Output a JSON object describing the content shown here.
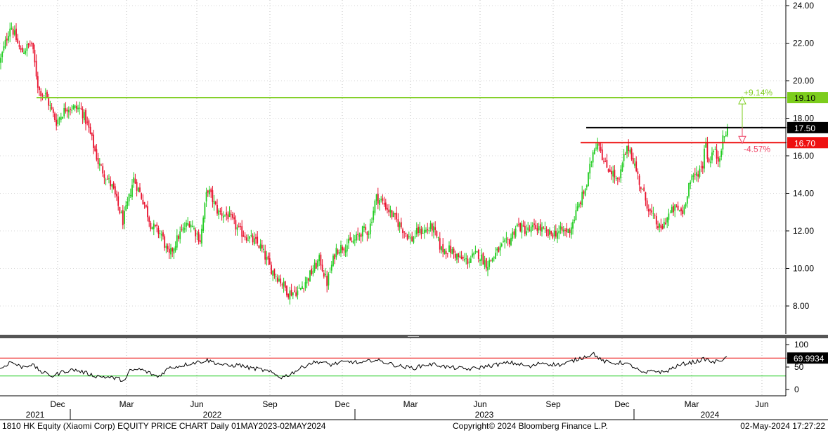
{
  "footer": {
    "left": "1810 HK Equity (Xiaomi Corp) EQUITY PRICE CHART  Daily 01MAY2023-02MAY2024",
    "center": "Copyright© 2024 Bloomberg Finance L.P.",
    "right": "02-May-2024 17:27:22"
  },
  "chart_data": [
    {
      "type": "candlestick",
      "y_ticks": [
        "24.00",
        "22.00",
        "20.00",
        "18.00",
        "16.00",
        "14.00",
        "12.00",
        "10.00",
        "8.00"
      ],
      "ylim": [
        6.3,
        24.2
      ],
      "x_month_labels": [
        "Dec",
        "Mar",
        "Jun",
        "Sep",
        "Dec",
        "Mar",
        "Jun",
        "Sep",
        "Dec",
        "Mar",
        "Jun"
      ],
      "x_year_labels": [
        "2021",
        "2022",
        "2023",
        "2024"
      ],
      "series_colors": {
        "up": "#22cc22",
        "down": "#e8112d"
      },
      "anchors": [
        [
          0,
          21.0
        ],
        [
          15,
          23.0
        ],
        [
          30,
          21.5
        ],
        [
          45,
          22.0
        ],
        [
          55,
          19.5
        ],
        [
          65,
          19.2
        ],
        [
          80,
          17.8
        ],
        [
          95,
          18.6
        ],
        [
          115,
          18.5
        ],
        [
          125,
          17.6
        ],
        [
          140,
          15.6
        ],
        [
          160,
          14.3
        ],
        [
          175,
          12.5
        ],
        [
          182,
          13.5
        ],
        [
          190,
          14.8
        ],
        [
          205,
          13.5
        ],
        [
          215,
          12.3
        ],
        [
          230,
          11.8
        ],
        [
          240,
          10.6
        ],
        [
          255,
          11.8
        ],
        [
          270,
          12.5
        ],
        [
          285,
          11.5
        ],
        [
          295,
          14.3
        ],
        [
          310,
          13.0
        ],
        [
          325,
          12.8
        ],
        [
          340,
          12.0
        ],
        [
          355,
          11.6
        ],
        [
          370,
          11.2
        ],
        [
          385,
          10.0
        ],
        [
          400,
          9.3
        ],
        [
          410,
          8.7
        ],
        [
          425,
          8.8
        ],
        [
          440,
          9.6
        ],
        [
          455,
          10.5
        ],
        [
          465,
          9.2
        ],
        [
          478,
          11.0
        ],
        [
          490,
          11.2
        ],
        [
          505,
          11.5
        ],
        [
          515,
          12.0
        ],
        [
          525,
          12.0
        ],
        [
          535,
          13.8
        ],
        [
          545,
          13.5
        ],
        [
          555,
          13.0
        ],
        [
          565,
          12.5
        ],
        [
          575,
          12.0
        ],
        [
          585,
          11.5
        ],
        [
          595,
          12.0
        ],
        [
          605,
          12.0
        ],
        [
          615,
          12.2
        ],
        [
          628,
          11.0
        ],
        [
          640,
          11.0
        ],
        [
          655,
          10.5
        ],
        [
          665,
          10.4
        ],
        [
          680,
          10.8
        ],
        [
          693,
          10.2
        ],
        [
          710,
          11.0
        ],
        [
          725,
          11.5
        ],
        [
          735,
          12.3
        ],
        [
          750,
          12.0
        ],
        [
          765,
          12.2
        ],
        [
          780,
          11.8
        ],
        [
          800,
          12.0
        ],
        [
          810,
          12.0
        ],
        [
          825,
          13.5
        ],
        [
          835,
          14.5
        ],
        [
          845,
          16.5
        ],
        [
          852,
          16.8
        ],
        [
          860,
          15.5
        ],
        [
          870,
          15.2
        ],
        [
          880,
          14.5
        ],
        [
          888,
          16.0
        ],
        [
          895,
          16.5
        ],
        [
          903,
          15.5
        ],
        [
          912,
          14.3
        ],
        [
          925,
          13.0
        ],
        [
          940,
          12.0
        ],
        [
          950,
          12.8
        ],
        [
          960,
          13.2
        ],
        [
          972,
          13.0
        ],
        [
          980,
          14.5
        ],
        [
          990,
          15.0
        ],
        [
          1000,
          15.5
        ],
        [
          1003,
          17.0
        ],
        [
          1008,
          15.6
        ],
        [
          1015,
          16.3
        ],
        [
          1022,
          15.8
        ],
        [
          1028,
          16.8
        ],
        [
          1036,
          17.5
        ]
      ],
      "levels": [
        {
          "value": 19.1,
          "label": "19.10",
          "color": "#7ccd1c",
          "text_color": "#000000"
        },
        {
          "value": 17.5,
          "label": "17.50",
          "color": "#000000",
          "text_color": "#ffffff"
        },
        {
          "value": 16.7,
          "label": "16.70",
          "color": "#ee1111",
          "text_color": "#ffffff"
        }
      ],
      "annotations": [
        {
          "text": "+9.14%",
          "color": "#7ccd1c"
        },
        {
          "text": "-4.57%",
          "color": "#ee4466"
        }
      ]
    },
    {
      "type": "line",
      "y_ticks": [
        "100",
        "50",
        "0"
      ],
      "ylim": [
        -10,
        110
      ],
      "upper_band": 70,
      "lower_band": 30,
      "last_value": "69.9934",
      "line_color": "#000000",
      "band_colors": {
        "upper": "#ee1111",
        "lower": "#22cc22"
      },
      "anchors": [
        [
          0,
          45
        ],
        [
          15,
          62
        ],
        [
          30,
          50
        ],
        [
          45,
          56
        ],
        [
          60,
          38
        ],
        [
          75,
          30
        ],
        [
          90,
          40
        ],
        [
          105,
          44
        ],
        [
          120,
          38
        ],
        [
          135,
          30
        ],
        [
          150,
          28
        ],
        [
          165,
          25
        ],
        [
          178,
          20
        ],
        [
          185,
          42
        ],
        [
          200,
          45
        ],
        [
          215,
          35
        ],
        [
          225,
          28
        ],
        [
          240,
          48
        ],
        [
          255,
          52
        ],
        [
          270,
          58
        ],
        [
          285,
          62
        ],
        [
          295,
          65
        ],
        [
          310,
          58
        ],
        [
          325,
          52
        ],
        [
          340,
          55
        ],
        [
          355,
          48
        ],
        [
          370,
          45
        ],
        [
          385,
          38
        ],
        [
          400,
          27
        ],
        [
          410,
          32
        ],
        [
          425,
          45
        ],
        [
          440,
          58
        ],
        [
          455,
          62
        ],
        [
          470,
          55
        ],
        [
          485,
          60
        ],
        [
          500,
          62
        ],
        [
          515,
          58
        ],
        [
          530,
          66
        ],
        [
          545,
          62
        ],
        [
          560,
          55
        ],
        [
          575,
          50
        ],
        [
          590,
          48
        ],
        [
          605,
          55
        ],
        [
          620,
          56
        ],
        [
          635,
          50
        ],
        [
          650,
          48
        ],
        [
          665,
          45
        ],
        [
          680,
          48
        ],
        [
          693,
          52
        ],
        [
          710,
          56
        ],
        [
          725,
          60
        ],
        [
          740,
          56
        ],
        [
          755,
          50
        ],
        [
          770,
          60
        ],
        [
          785,
          56
        ],
        [
          800,
          55
        ],
        [
          815,
          64
        ],
        [
          830,
          72
        ],
        [
          845,
          80
        ],
        [
          855,
          65
        ],
        [
          870,
          58
        ],
        [
          885,
          60
        ],
        [
          900,
          52
        ],
        [
          915,
          35
        ],
        [
          930,
          42
        ],
        [
          945,
          38
        ],
        [
          960,
          50
        ],
        [
          975,
          58
        ],
        [
          990,
          62
        ],
        [
          1003,
          68
        ],
        [
          1015,
          60
        ],
        [
          1025,
          66
        ],
        [
          1036,
          70
        ]
      ]
    }
  ]
}
